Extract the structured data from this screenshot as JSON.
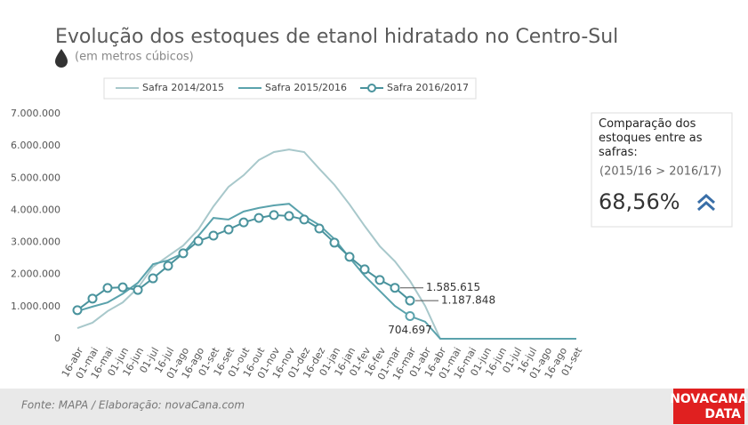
{
  "chart_data": {
    "type": "line",
    "title": "Evolução dos estoques de etanol hidratado no Centro-Sul",
    "subtitle": "(em metros cúbicos)",
    "categories": [
      "16-abr",
      "01-mai",
      "16-mai",
      "01-jun",
      "16-jun",
      "01-jul",
      "16-jul",
      "01-ago",
      "16-ago",
      "01-set",
      "16-set",
      "01-out",
      "16-out",
      "01-nov",
      "16-nov",
      "01-dez",
      "16-dez",
      "01-jan",
      "16-jan",
      "01-fev",
      "16-fev",
      "01-mar",
      "16-mar",
      "01-abr",
      "16-abr",
      "01-mai",
      "16-mai",
      "01-jun",
      "16-jun",
      "01-jul",
      "16-jul",
      "01-ago",
      "16-ago",
      "01-set"
    ],
    "series": [
      {
        "name": "Safra 2014/2015",
        "color": "#a8c8cb",
        "marker": false,
        "values": [
          330000,
          500000,
          860000,
          1130000,
          1580000,
          2240000,
          2570000,
          2900000,
          3400000,
          4120000,
          4730000,
          5090000,
          5560000,
          5810000,
          5890000,
          5810000,
          5290000,
          4790000,
          4180000,
          3510000,
          2880000,
          2410000,
          1800000,
          1020000,
          0,
          0,
          0,
          0,
          0,
          0,
          0,
          0,
          0,
          0
        ]
      },
      {
        "name": "Safra 2015/2016",
        "color": "#5aa2ac",
        "marker": false,
        "values": [
          860000,
          1000000,
          1130000,
          1400000,
          1740000,
          2320000,
          2440000,
          2660000,
          3200000,
          3760000,
          3710000,
          3960000,
          4070000,
          4150000,
          4200000,
          3820000,
          3540000,
          3100000,
          2520000,
          1960000,
          1490000,
          1020000,
          704697,
          530000,
          0,
          0,
          0,
          0,
          0,
          0,
          0,
          0,
          0,
          0
        ],
        "value_labels": [
          null,
          null,
          null,
          null,
          null,
          null,
          null,
          null,
          null,
          null,
          null,
          null,
          null,
          null,
          null,
          null,
          null,
          null,
          null,
          null,
          null,
          null,
          "704.697",
          null,
          null,
          null,
          null,
          null,
          null,
          null,
          null,
          null,
          null,
          null
        ]
      },
      {
        "name": "Safra 2016/2017",
        "color": "#4a939d",
        "marker": true,
        "values": [
          890000,
          1250000,
          1580000,
          1600000,
          1520000,
          1880000,
          2270000,
          2660000,
          3040000,
          3210000,
          3400000,
          3620000,
          3760000,
          3850000,
          3820000,
          3710000,
          3430000,
          2990000,
          2550000,
          2160000,
          1830000,
          1585615,
          1187848,
          null,
          null,
          null,
          null,
          null,
          null,
          null,
          null,
          null,
          null,
          null
        ],
        "value_labels": [
          null,
          null,
          null,
          null,
          null,
          null,
          null,
          null,
          null,
          null,
          null,
          null,
          null,
          null,
          null,
          null,
          null,
          null,
          null,
          null,
          null,
          "1.585.615",
          "1.187.848",
          null,
          null,
          null,
          null,
          null,
          null,
          null,
          null,
          null,
          null,
          null
        ]
      }
    ],
    "ylim": [
      0,
      7000000
    ],
    "yticks": [
      0,
      {
        "value": 1000000,
        "label": "1.000.000"
      },
      {
        "value": 2000000,
        "label": "2.000.000"
      },
      {
        "value": 3000000,
        "label": "3.000.000"
      },
      {
        "value": 4000000,
        "label": "4.000.000"
      },
      {
        "value": 5000000,
        "label": "5.000.000"
      },
      {
        "value": 6000000,
        "label": "6.000.000"
      },
      {
        "value": 7000000,
        "label": "7.000.000"
      }
    ],
    "grid": false,
    "legend": "top"
  },
  "panel": {
    "heading": "Comparação dos estoques entre as safras:",
    "note": "(2015/16 > 2016/17)",
    "value": "68,56%"
  },
  "footer": {
    "source": "Fonte: MAPA  / Elaboração: novaCana.com",
    "logo_top": "NOVACANA",
    "logo_bottom": "DATA"
  }
}
